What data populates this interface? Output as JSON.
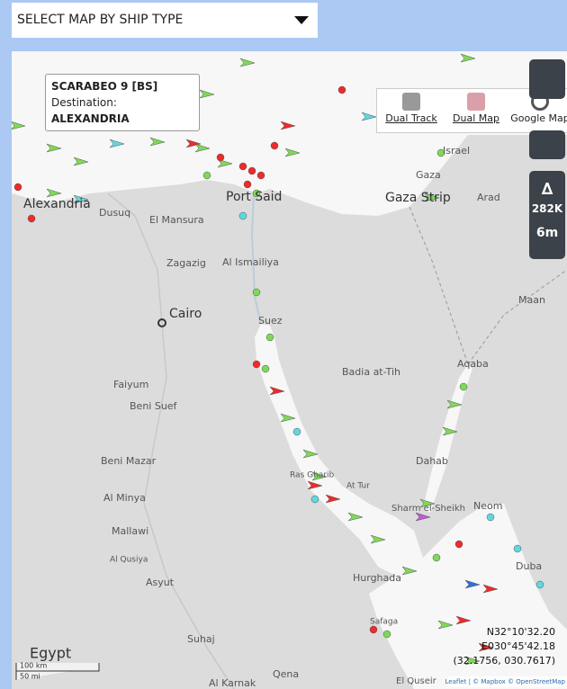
{
  "dropdown": {
    "label": "SELECT MAP BY SHIP TYPE"
  },
  "popup": {
    "title": "SCARABEO 9 [BS]",
    "destination_label": "Destination:",
    "destination": "ALEXANDRIA"
  },
  "toolbar": {
    "buttons": [
      "Dual Track",
      "Dual Map",
      "Google Map"
    ]
  },
  "side_controls": {
    "count": "282K",
    "interval": "6m"
  },
  "places": [
    "Israel",
    "Gaza",
    "Gaza Strip",
    "Arad",
    "Alexandria",
    "Dusuq",
    "El Mansura",
    "Port Said",
    "Zagazig",
    "Al Ismailiya",
    "Cairo",
    "Suez",
    "Maan",
    "Aqaba",
    "Badia at-Tih",
    "Faiyum",
    "Beni Suef",
    "Dahab",
    "Beni Mazar",
    "Al Minya",
    "Mallawi",
    "Al Qusiya",
    "Asyut",
    "Ras Gharib",
    "At Tur",
    "Sharm el-Sheikh",
    "Neom",
    "Hurghada",
    "Duba",
    "Safaga",
    "Suhaj",
    "Qena",
    "Al Karnak",
    "El Quseir",
    "Egypt"
  ],
  "scale": {
    "km": "100 km",
    "mi": "50 mi"
  },
  "coordinates": {
    "lat": "N32°10'32.20",
    "lon": "E030°45'42.18",
    "decimal": "(32.1756, 030.7617)"
  },
  "attribution": "Leaflet | © Mapbox © OpenStreetMap"
}
